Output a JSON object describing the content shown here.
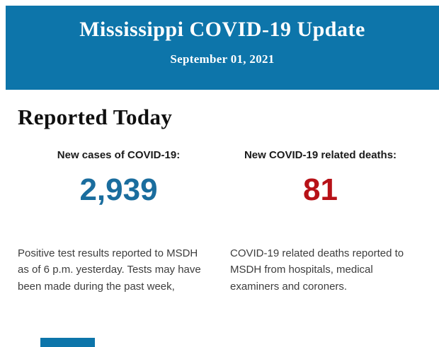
{
  "header": {
    "title": "Mississippi COVID-19 Update",
    "date": "September 01, 2021",
    "background_color": "#0d75aa",
    "text_color": "#ffffff"
  },
  "section": {
    "heading": "Reported Today"
  },
  "stats": [
    {
      "label": "New cases of COVID-19:",
      "value": "2,939",
      "value_color": "#1a6d9e",
      "description": "Positive test results reported to MSDH as of 6 p.m. yesterday. Tests may have been made during the past week,"
    },
    {
      "label": "New COVID-19 related deaths:",
      "value": "81",
      "value_color": "#b71117",
      "description": "COVID-19 related deaths reported to MSDH from hospitals, medical examiners and coroners."
    }
  ]
}
